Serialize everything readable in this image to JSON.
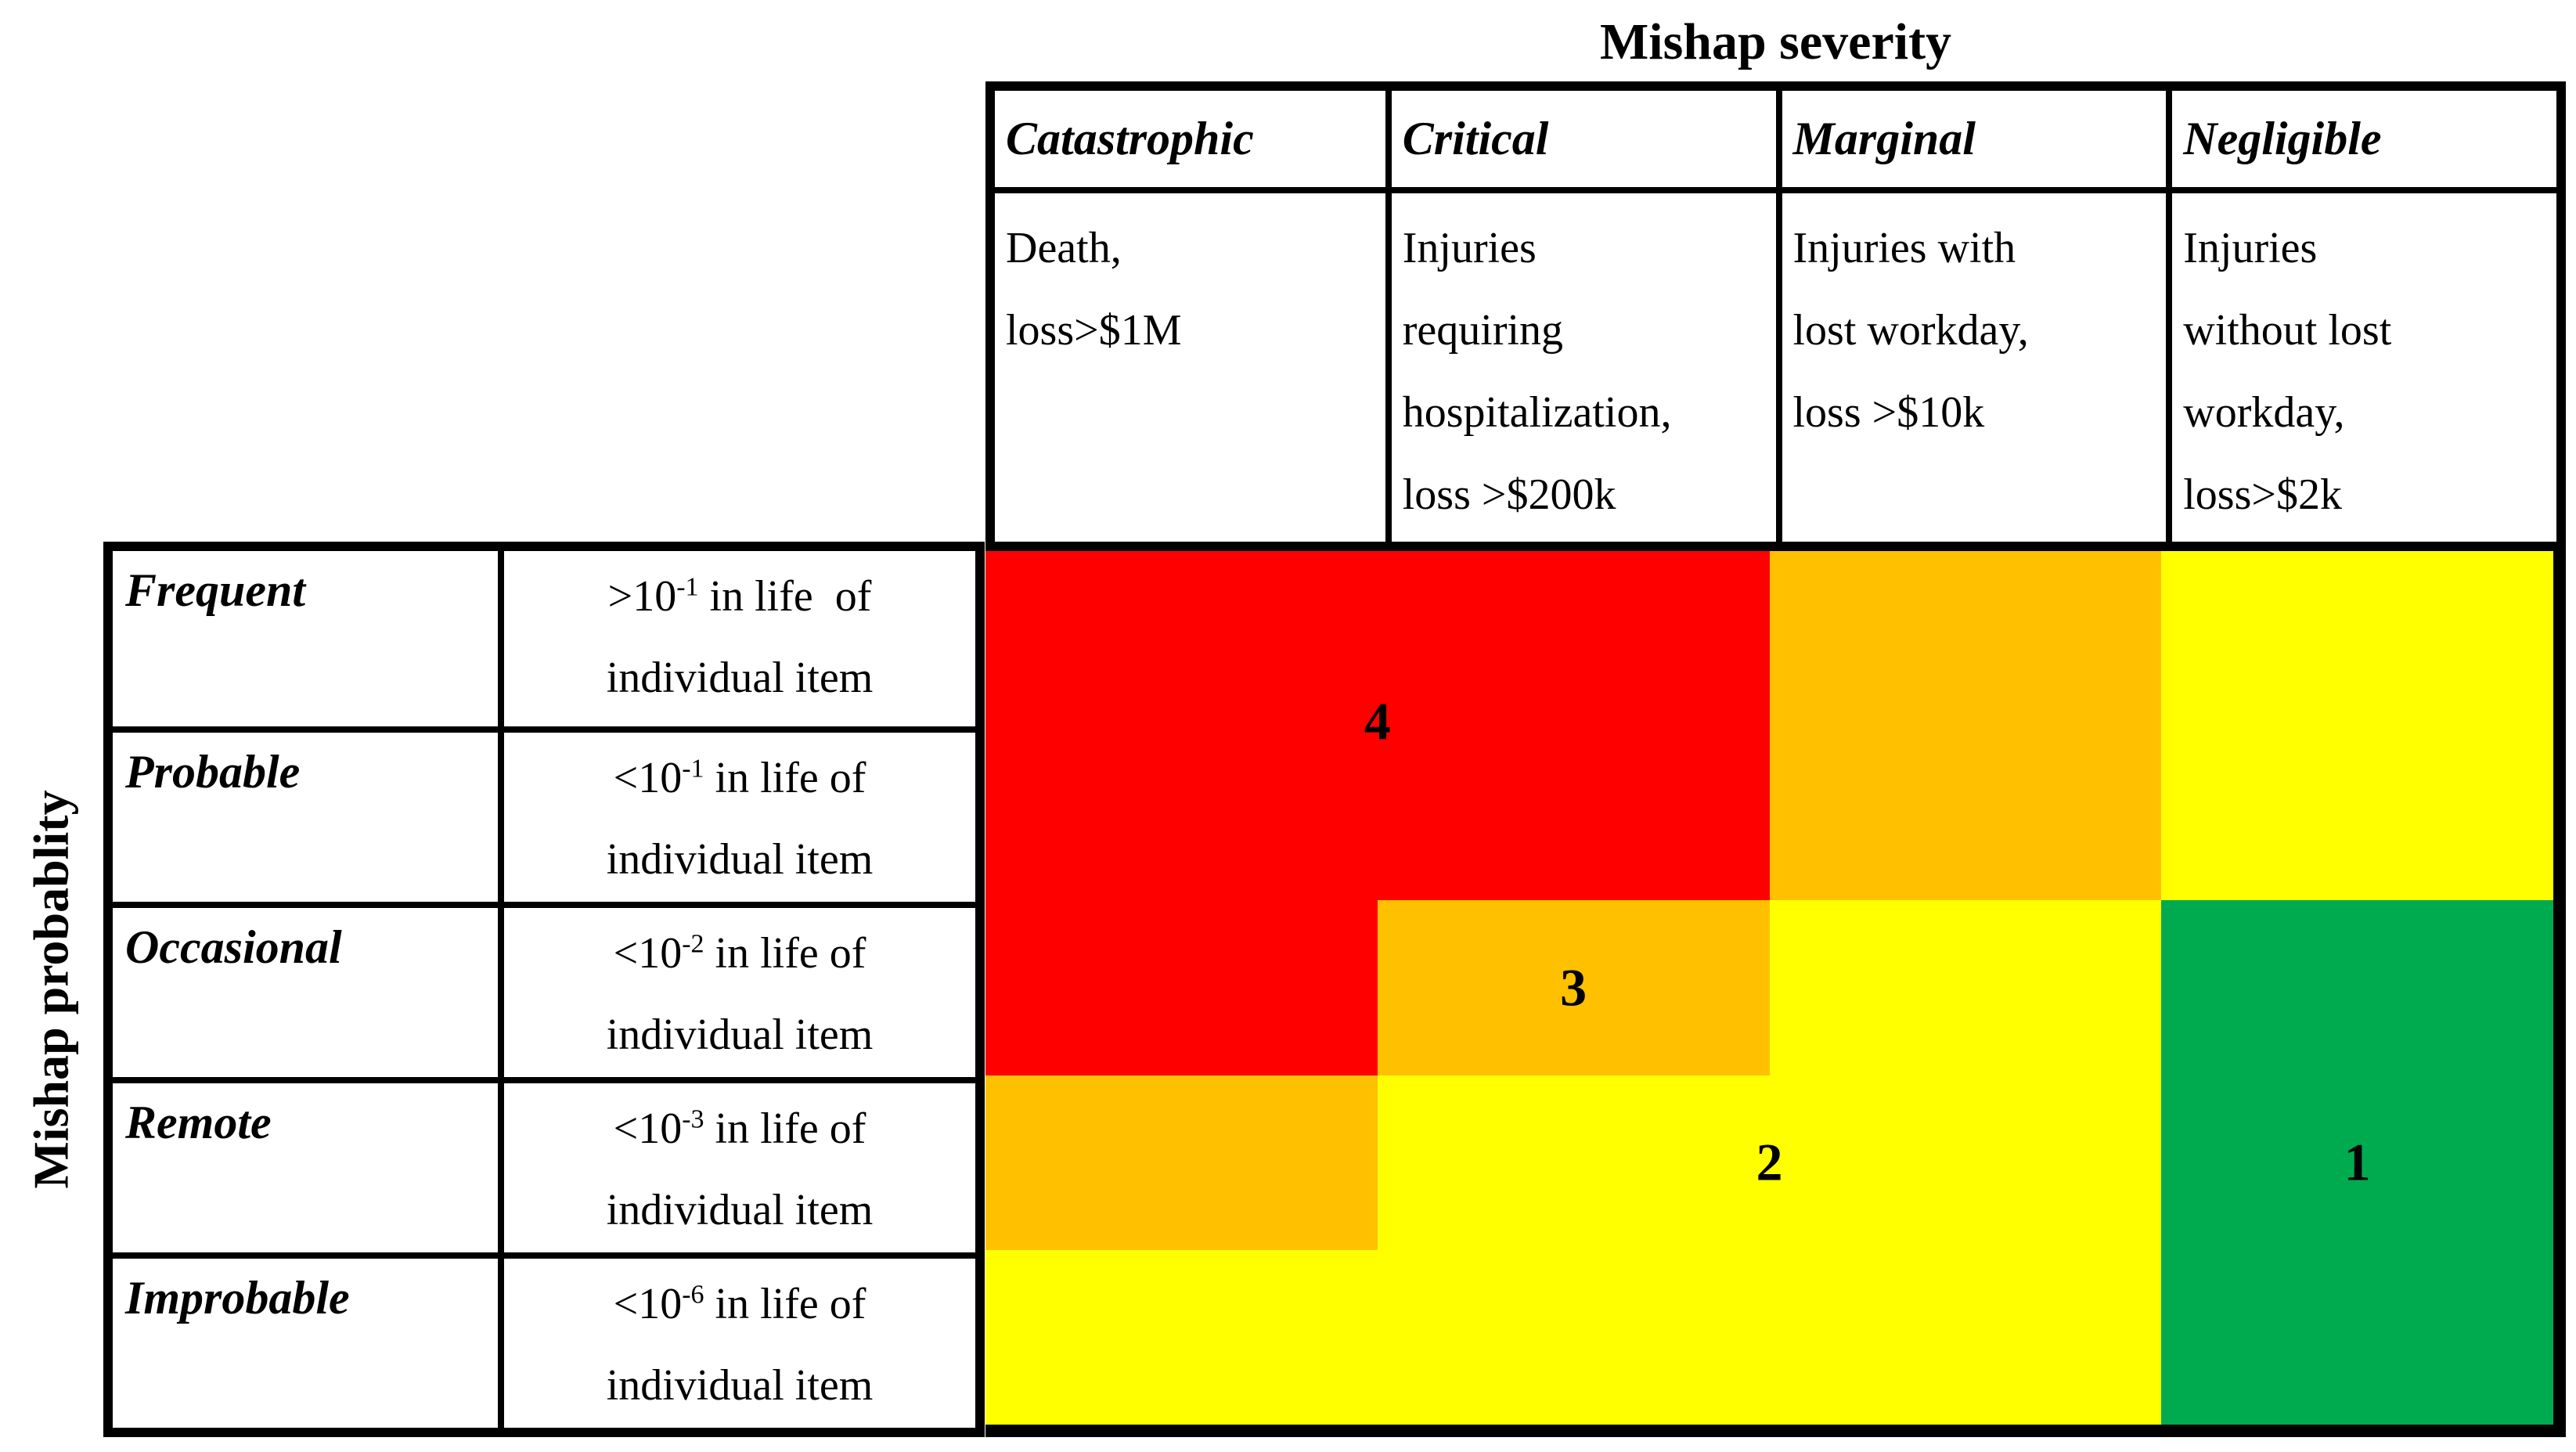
{
  "title": "Mishap severity",
  "y_axis_title": "Mishap probablity",
  "palette": {
    "red": "#FE0000",
    "orange": "#FFC000",
    "yellow": "#FFFF00",
    "green": "#00AB50"
  },
  "severity_columns": [
    {
      "name": "Catastrophic",
      "description_lines": [
        "Death,",
        "loss>$1M",
        "",
        ""
      ]
    },
    {
      "name": "Critical",
      "description_lines": [
        "Injuries",
        "requiring",
        "hospitalization,",
        "loss >$200k"
      ]
    },
    {
      "name": "Marginal",
      "description_lines": [
        "Injuries with",
        "lost workday,",
        "loss >$10k",
        ""
      ]
    },
    {
      "name": "Negligible",
      "description_lines": [
        "Injuries",
        "without lost",
        "workday,",
        "loss>$2k"
      ]
    }
  ],
  "probability_rows": [
    {
      "name": "Frequent",
      "prob_prefix": ">10",
      "prob_exp": "-1",
      "prob_suffix": " in life  of",
      "prob_line2": "individual item"
    },
    {
      "name": "Probable",
      "prob_prefix": "<10",
      "prob_exp": "-1",
      "prob_suffix": " in life of",
      "prob_line2": "individual item"
    },
    {
      "name": "Occasional",
      "prob_prefix": "<10",
      "prob_exp": "-2",
      "prob_suffix": " in life of",
      "prob_line2": "individual item"
    },
    {
      "name": "Remote",
      "prob_prefix": "<10",
      "prob_exp": "-3",
      "prob_suffix": " in life of",
      "prob_line2": "individual item"
    },
    {
      "name": "Improbable",
      "prob_prefix": "<10",
      "prob_exp": "-6",
      "prob_suffix": " in life of",
      "prob_line2": "individual item"
    }
  ],
  "risk_matrix": {
    "cell_colors": [
      [
        "red",
        "red",
        "orange",
        "yellow"
      ],
      [
        "red",
        "red",
        "orange",
        "yellow"
      ],
      [
        "red",
        "orange",
        "yellow",
        "green"
      ],
      [
        "orange",
        "yellow",
        "yellow",
        "green"
      ],
      [
        "yellow",
        "yellow",
        "yellow",
        "green"
      ]
    ],
    "levels": [
      {
        "value": "4",
        "zone": "red"
      },
      {
        "value": "3",
        "zone": "orange"
      },
      {
        "value": "2",
        "zone": "yellow"
      },
      {
        "value": "1",
        "zone": "green"
      }
    ]
  }
}
